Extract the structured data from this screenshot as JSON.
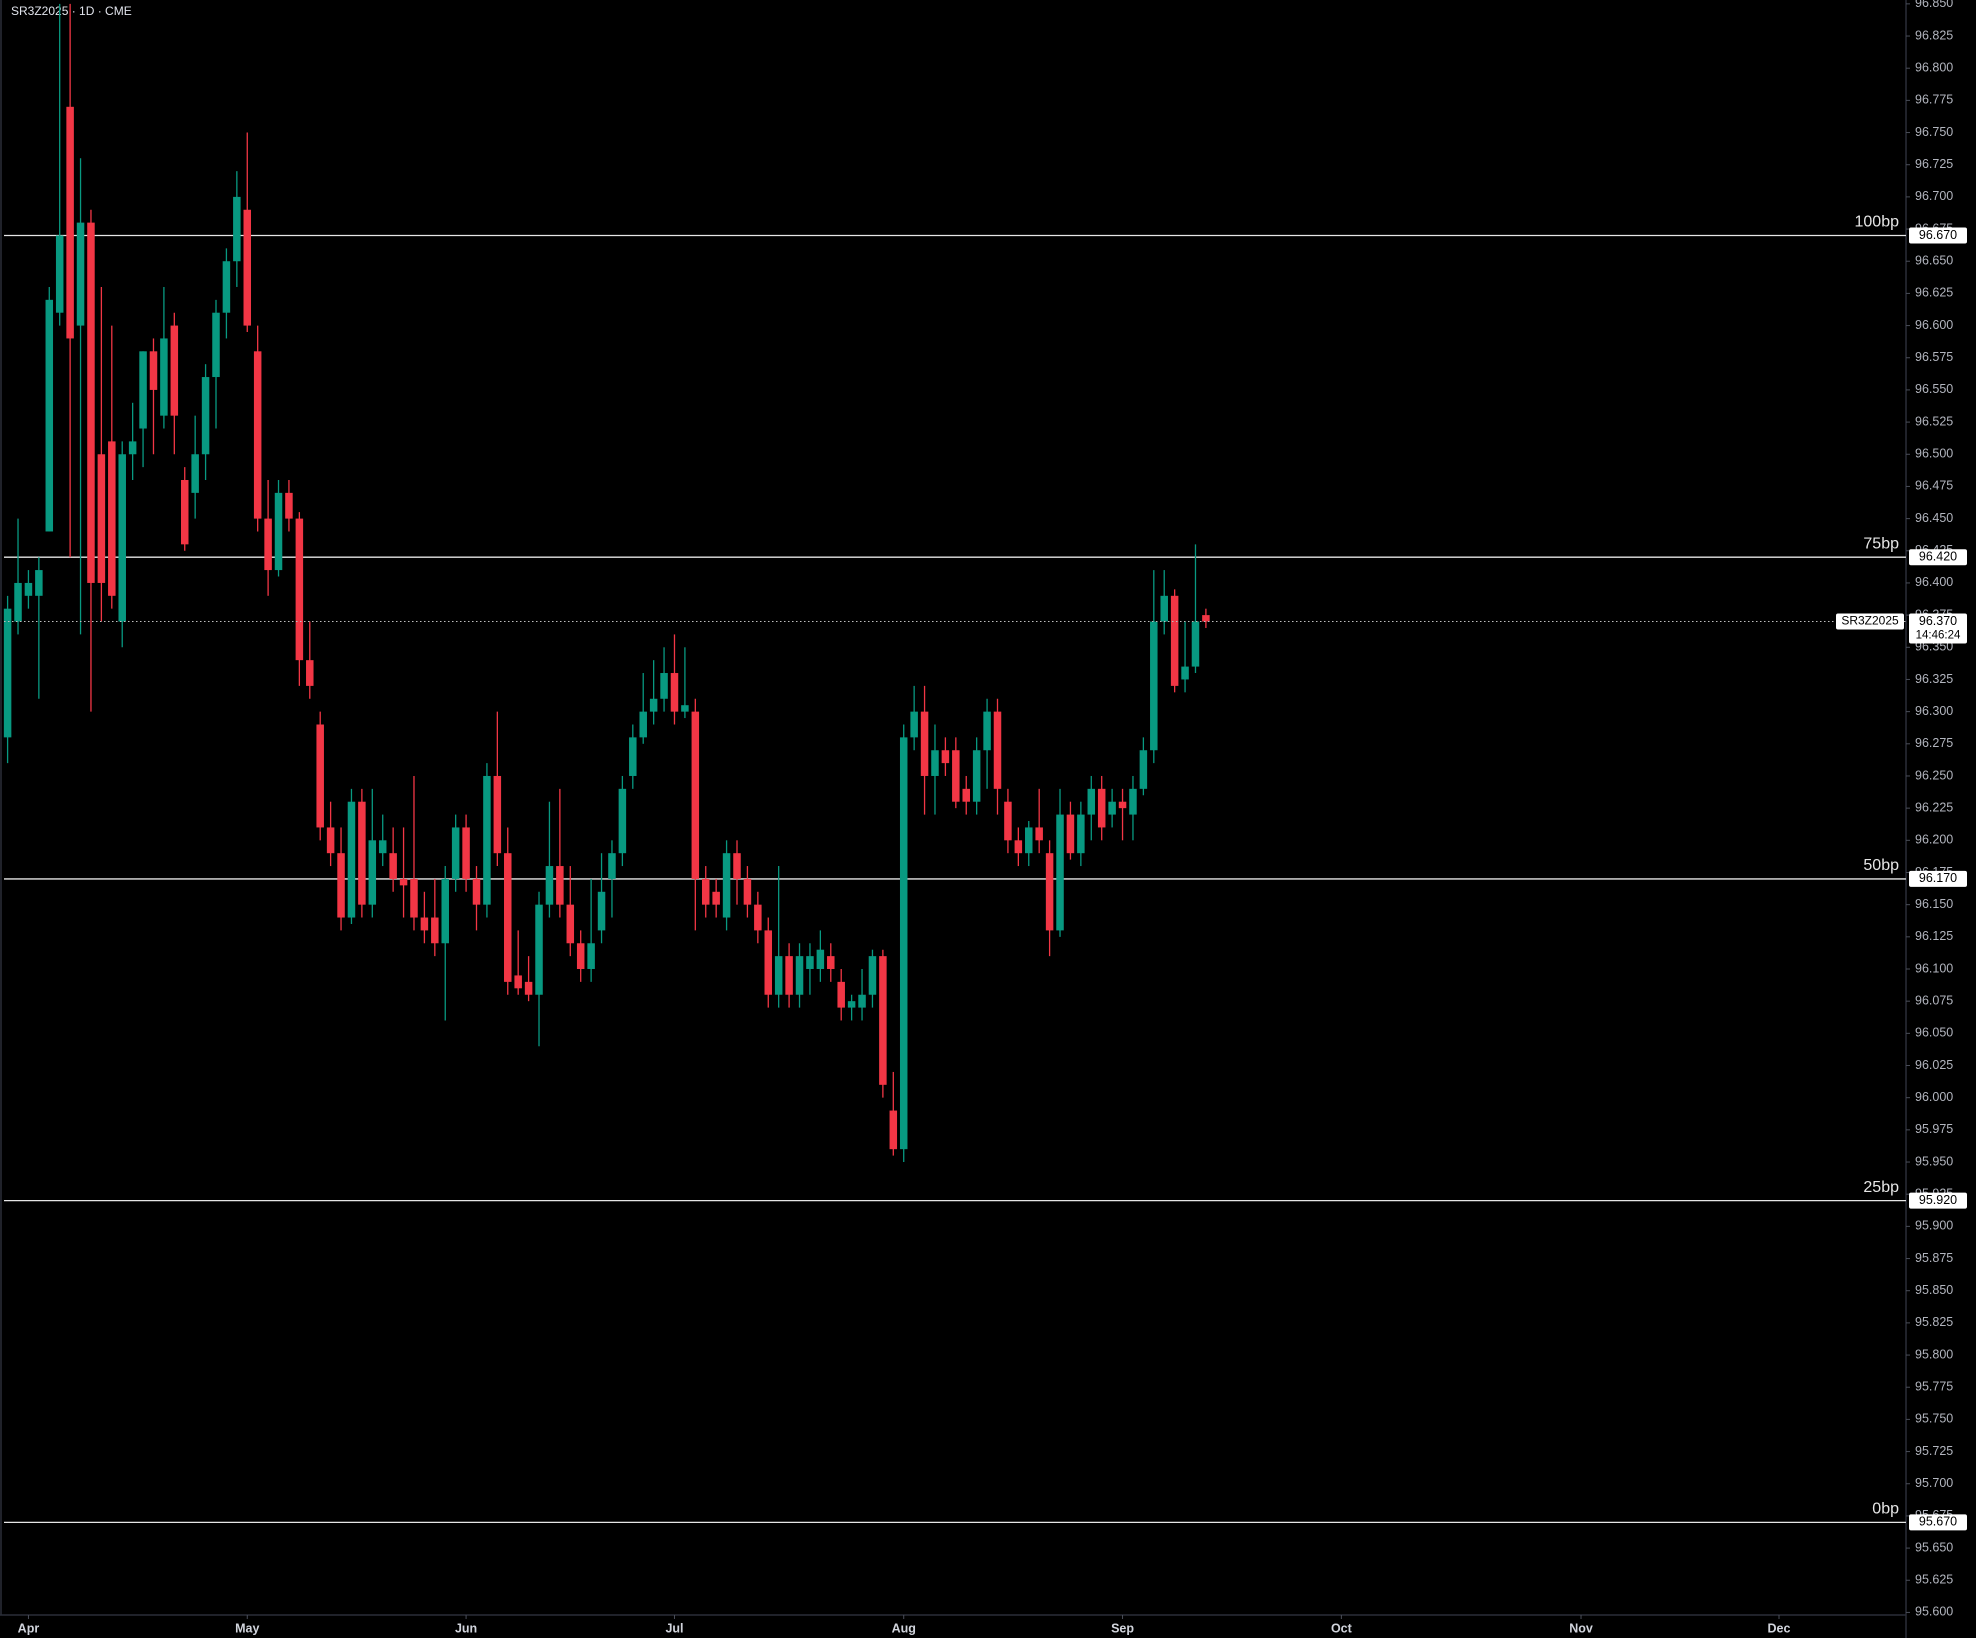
{
  "chart_data": {
    "type": "candlestick",
    "title": "SR3Z2025 · 1D · CME",
    "up_color": "#089981",
    "down_color": "#f23645",
    "open": [
      96.28,
      96.37,
      96.39,
      96.39,
      96.44,
      96.61,
      96.77,
      96.6,
      96.68,
      96.5,
      96.51,
      96.37,
      96.5,
      96.52,
      96.58,
      96.53,
      96.6,
      96.48,
      96.47,
      96.5,
      96.56,
      96.61,
      96.65,
      96.69,
      96.58,
      96.45,
      96.41,
      96.47,
      96.45,
      96.34,
      96.29,
      96.21,
      96.19,
      96.14,
      96.23,
      96.15,
      96.19,
      96.19,
      96.17,
      96.17,
      96.14,
      96.14,
      96.12,
      96.17,
      96.21,
      96.17,
      96.15,
      96.25,
      96.19,
      96.095,
      96.09,
      96.08,
      96.15,
      96.18,
      96.15,
      96.12,
      96.1,
      96.13,
      96.17,
      96.19,
      96.25,
      96.28,
      96.3,
      96.31,
      96.33,
      96.3,
      96.3,
      96.17,
      96.16,
      96.14,
      96.19,
      96.17,
      96.15,
      96.13,
      96.08,
      96.11,
      96.08,
      96.1,
      96.1,
      96.11,
      96.09,
      96.07,
      96.07,
      96.08,
      96.11,
      95.99,
      95.96,
      96.28,
      96.3,
      96.25,
      96.27,
      96.27,
      96.24,
      96.23,
      96.27,
      96.3,
      96.23,
      96.2,
      96.19,
      96.21,
      96.19,
      96.13,
      96.22,
      96.19,
      96.22,
      96.24,
      96.22,
      96.23,
      96.22,
      96.24,
      96.27,
      96.37,
      96.39,
      96.325,
      96.335,
      96.375
    ],
    "high": [
      96.39,
      96.45,
      96.41,
      96.42,
      96.63,
      96.85,
      96.85,
      96.73,
      96.69,
      96.63,
      96.6,
      96.51,
      96.54,
      96.58,
      96.59,
      96.63,
      96.61,
      96.49,
      96.53,
      96.57,
      96.62,
      96.66,
      96.72,
      96.75,
      96.6,
      96.48,
      96.48,
      96.48,
      96.455,
      96.37,
      96.3,
      96.23,
      96.21,
      96.24,
      96.24,
      96.24,
      96.22,
      96.21,
      96.21,
      96.25,
      96.16,
      96.17,
      96.18,
      96.22,
      96.22,
      96.18,
      96.26,
      96.3,
      96.21,
      96.13,
      96.11,
      96.16,
      96.23,
      96.24,
      96.18,
      96.13,
      96.17,
      96.19,
      96.2,
      96.25,
      96.29,
      96.33,
      96.34,
      96.35,
      96.36,
      96.35,
      96.31,
      96.18,
      96.17,
      96.2,
      96.2,
      96.18,
      96.16,
      96.14,
      96.18,
      96.12,
      96.12,
      96.12,
      96.13,
      96.12,
      96.1,
      96.08,
      96.1,
      96.115,
      96.115,
      96.02,
      96.29,
      96.32,
      96.32,
      96.29,
      96.28,
      96.28,
      96.25,
      96.28,
      96.31,
      96.31,
      96.24,
      96.21,
      96.215,
      96.24,
      96.2,
      96.24,
      96.23,
      96.23,
      96.25,
      96.25,
      96.24,
      96.24,
      96.25,
      96.28,
      96.41,
      96.41,
      96.395,
      96.37,
      96.43,
      96.38
    ],
    "low": [
      96.26,
      96.36,
      96.38,
      96.31,
      96.44,
      96.6,
      96.42,
      96.36,
      96.3,
      96.37,
      96.38,
      96.35,
      96.48,
      96.49,
      96.5,
      96.52,
      96.5,
      96.425,
      96.45,
      96.48,
      96.52,
      96.59,
      96.63,
      96.595,
      96.44,
      96.39,
      96.405,
      96.44,
      96.32,
      96.31,
      96.2,
      96.18,
      96.13,
      96.135,
      96.14,
      96.14,
      96.18,
      96.16,
      96.14,
      96.13,
      96.12,
      96.11,
      96.06,
      96.16,
      96.16,
      96.13,
      96.14,
      96.18,
      96.08,
      96.08,
      96.075,
      96.04,
      96.14,
      96.14,
      96.11,
      96.09,
      96.09,
      96.12,
      96.14,
      96.18,
      96.24,
      96.275,
      96.29,
      96.3,
      96.29,
      96.295,
      96.13,
      96.14,
      96.14,
      96.13,
      96.15,
      96.14,
      96.12,
      96.07,
      96.07,
      96.07,
      96.07,
      96.08,
      96.09,
      96.09,
      96.06,
      96.06,
      96.06,
      96.07,
      96.0,
      95.955,
      95.95,
      96.27,
      96.22,
      96.22,
      96.25,
      96.225,
      96.22,
      96.22,
      96.24,
      96.22,
      96.19,
      96.18,
      96.18,
      96.19,
      96.11,
      96.125,
      96.185,
      96.18,
      96.2,
      96.2,
      96.21,
      96.2,
      96.2,
      96.235,
      96.26,
      96.36,
      96.315,
      96.315,
      96.33,
      96.365
    ],
    "close": [
      96.38,
      96.4,
      96.4,
      96.41,
      96.62,
      96.67,
      96.59,
      96.68,
      96.4,
      96.4,
      96.39,
      96.5,
      96.51,
      96.58,
      96.55,
      96.59,
      96.53,
      96.43,
      96.5,
      96.56,
      96.61,
      96.65,
      96.7,
      96.6,
      96.45,
      96.41,
      96.47,
      96.45,
      96.34,
      96.32,
      96.21,
      96.19,
      96.14,
      96.23,
      96.15,
      96.2,
      96.2,
      96.17,
      96.165,
      96.14,
      96.13,
      96.12,
      96.17,
      96.21,
      96.17,
      96.15,
      96.25,
      96.19,
      96.09,
      96.085,
      96.08,
      96.15,
      96.18,
      96.15,
      96.12,
      96.1,
      96.12,
      96.16,
      96.19,
      96.24,
      96.28,
      96.3,
      96.31,
      96.33,
      96.3,
      96.305,
      96.17,
      96.15,
      96.15,
      96.19,
      96.17,
      96.15,
      96.13,
      96.08,
      96.11,
      96.08,
      96.11,
      96.11,
      96.115,
      96.1,
      96.07,
      96.075,
      96.08,
      96.11,
      96.01,
      95.96,
      96.28,
      96.3,
      96.25,
      96.27,
      96.26,
      96.23,
      96.23,
      96.27,
      96.3,
      96.24,
      96.2,
      96.19,
      96.21,
      96.2,
      96.13,
      96.22,
      96.19,
      96.22,
      96.24,
      96.21,
      96.23,
      96.225,
      96.24,
      96.27,
      96.37,
      96.39,
      96.32,
      96.335,
      96.37,
      96.37
    ],
    "xticks": [
      {
        "value": 2,
        "label": "Apr"
      },
      {
        "value": 23,
        "label": "May"
      },
      {
        "value": 44,
        "label": "Jun"
      },
      {
        "value": 64,
        "label": "Jul"
      },
      {
        "value": 86,
        "label": "Aug"
      },
      {
        "value": 107,
        "label": "Sep"
      },
      {
        "value": 128,
        "label": "Oct"
      },
      {
        "value": 151,
        "label": "Nov"
      },
      {
        "value": 170,
        "label": "Dec"
      }
    ],
    "ylim": [
      95.598,
      96.853
    ],
    "yticks": [
      {
        "value": 96.85,
        "label": "96.850"
      },
      96.825,
      {
        "value": 96.8,
        "label": "96.800"
      },
      96.775,
      {
        "value": 96.75,
        "label": "96.750"
      },
      96.725,
      {
        "value": 96.7,
        "label": "96.700"
      },
      96.675,
      {
        "value": 96.65,
        "label": "96.650"
      },
      96.625,
      {
        "value": 96.6,
        "label": "96.600"
      },
      96.575,
      {
        "value": 96.55,
        "label": "96.550"
      },
      96.525,
      {
        "value": 96.5,
        "label": "96.500"
      },
      96.475,
      {
        "value": 96.45,
        "label": "96.450"
      },
      96.425,
      {
        "value": 96.4,
        "label": "96.400"
      },
      96.375,
      {
        "value": 96.35,
        "label": "96.350"
      },
      96.325,
      {
        "value": 96.3,
        "label": "96.300"
      },
      96.275,
      {
        "value": 96.25,
        "label": "96.250"
      },
      96.225,
      {
        "value": 96.2,
        "label": "96.200"
      },
      96.175,
      {
        "value": 96.15,
        "label": "96.150"
      },
      96.125,
      {
        "value": 96.1,
        "label": "96.100"
      },
      96.075,
      {
        "value": 96.05,
        "label": "96.050"
      },
      96.025,
      {
        "value": 96,
        "label": "96.000"
      },
      95.975,
      {
        "value": 95.95,
        "label": "95.950"
      },
      95.925,
      {
        "value": 95.9,
        "label": "95.900"
      },
      95.875,
      {
        "value": 95.85,
        "label": "95.850"
      },
      95.825,
      {
        "value": 95.8,
        "label": "95.800"
      },
      95.775,
      {
        "value": 95.75,
        "label": "95.750"
      },
      95.725,
      {
        "value": 95.7,
        "label": "95.700"
      },
      95.675,
      {
        "value": 95.65,
        "label": "95.650"
      },
      95.625,
      {
        "value": 95.6,
        "label": "95.600"
      }
    ],
    "levels": [
      {
        "name": "100bp",
        "value": 96.67,
        "label": "96.670"
      },
      {
        "name": "75bp",
        "value": 96.42,
        "label": "96.420"
      },
      {
        "name": "50bp",
        "value": 96.17,
        "label": "96.170"
      },
      {
        "name": "25bp",
        "value": 95.92,
        "label": "95.920"
      },
      {
        "name": "0bp",
        "value": 95.67,
        "label": "95.670"
      }
    ],
    "last_price": {
      "symbol": "SR3Z2025",
      "value": 96.37,
      "label": "96.370",
      "countdown": "14:46:24"
    }
  }
}
